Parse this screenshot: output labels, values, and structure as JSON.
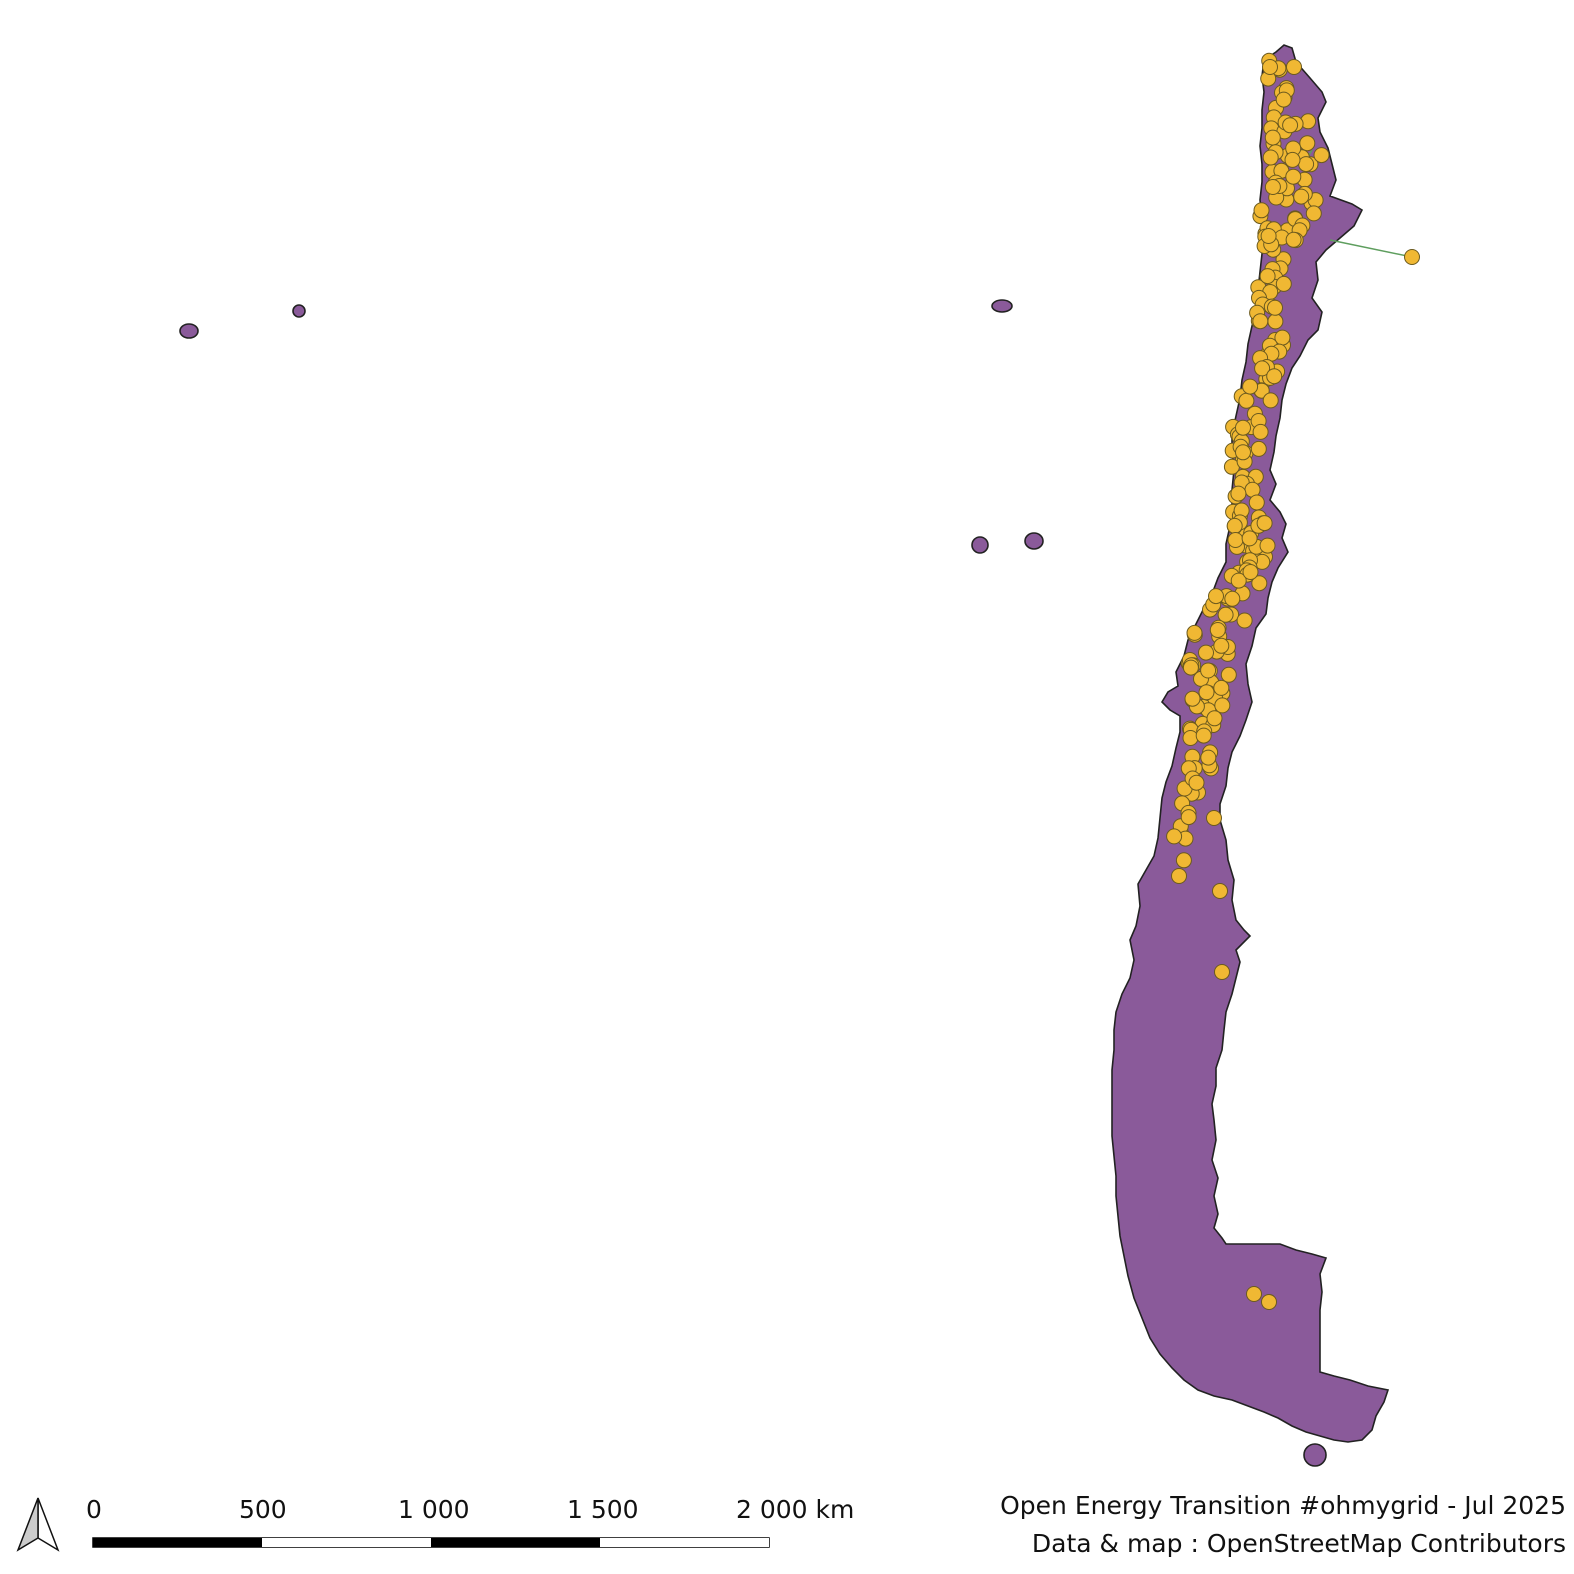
{
  "colors": {
    "land_fill": "#8a5a9a",
    "land_stroke": "#222222",
    "plant_fill": "#f0b833",
    "plant_stroke": "#6b5a1e",
    "line_color": "#5e9e5e",
    "scale_dark": "#000000",
    "scale_light": "#ffffff"
  },
  "icons": {
    "north_arrow": "north-arrow-icon"
  },
  "scale_bar": {
    "labels": [
      "0",
      "500",
      "1 000",
      "1 500",
      "2 000 km"
    ]
  },
  "credits": {
    "line1": "Open Energy Transition #ohmygrid - Jul 2025",
    "line2": "Data & map : OpenStreetMap Contributors"
  }
}
